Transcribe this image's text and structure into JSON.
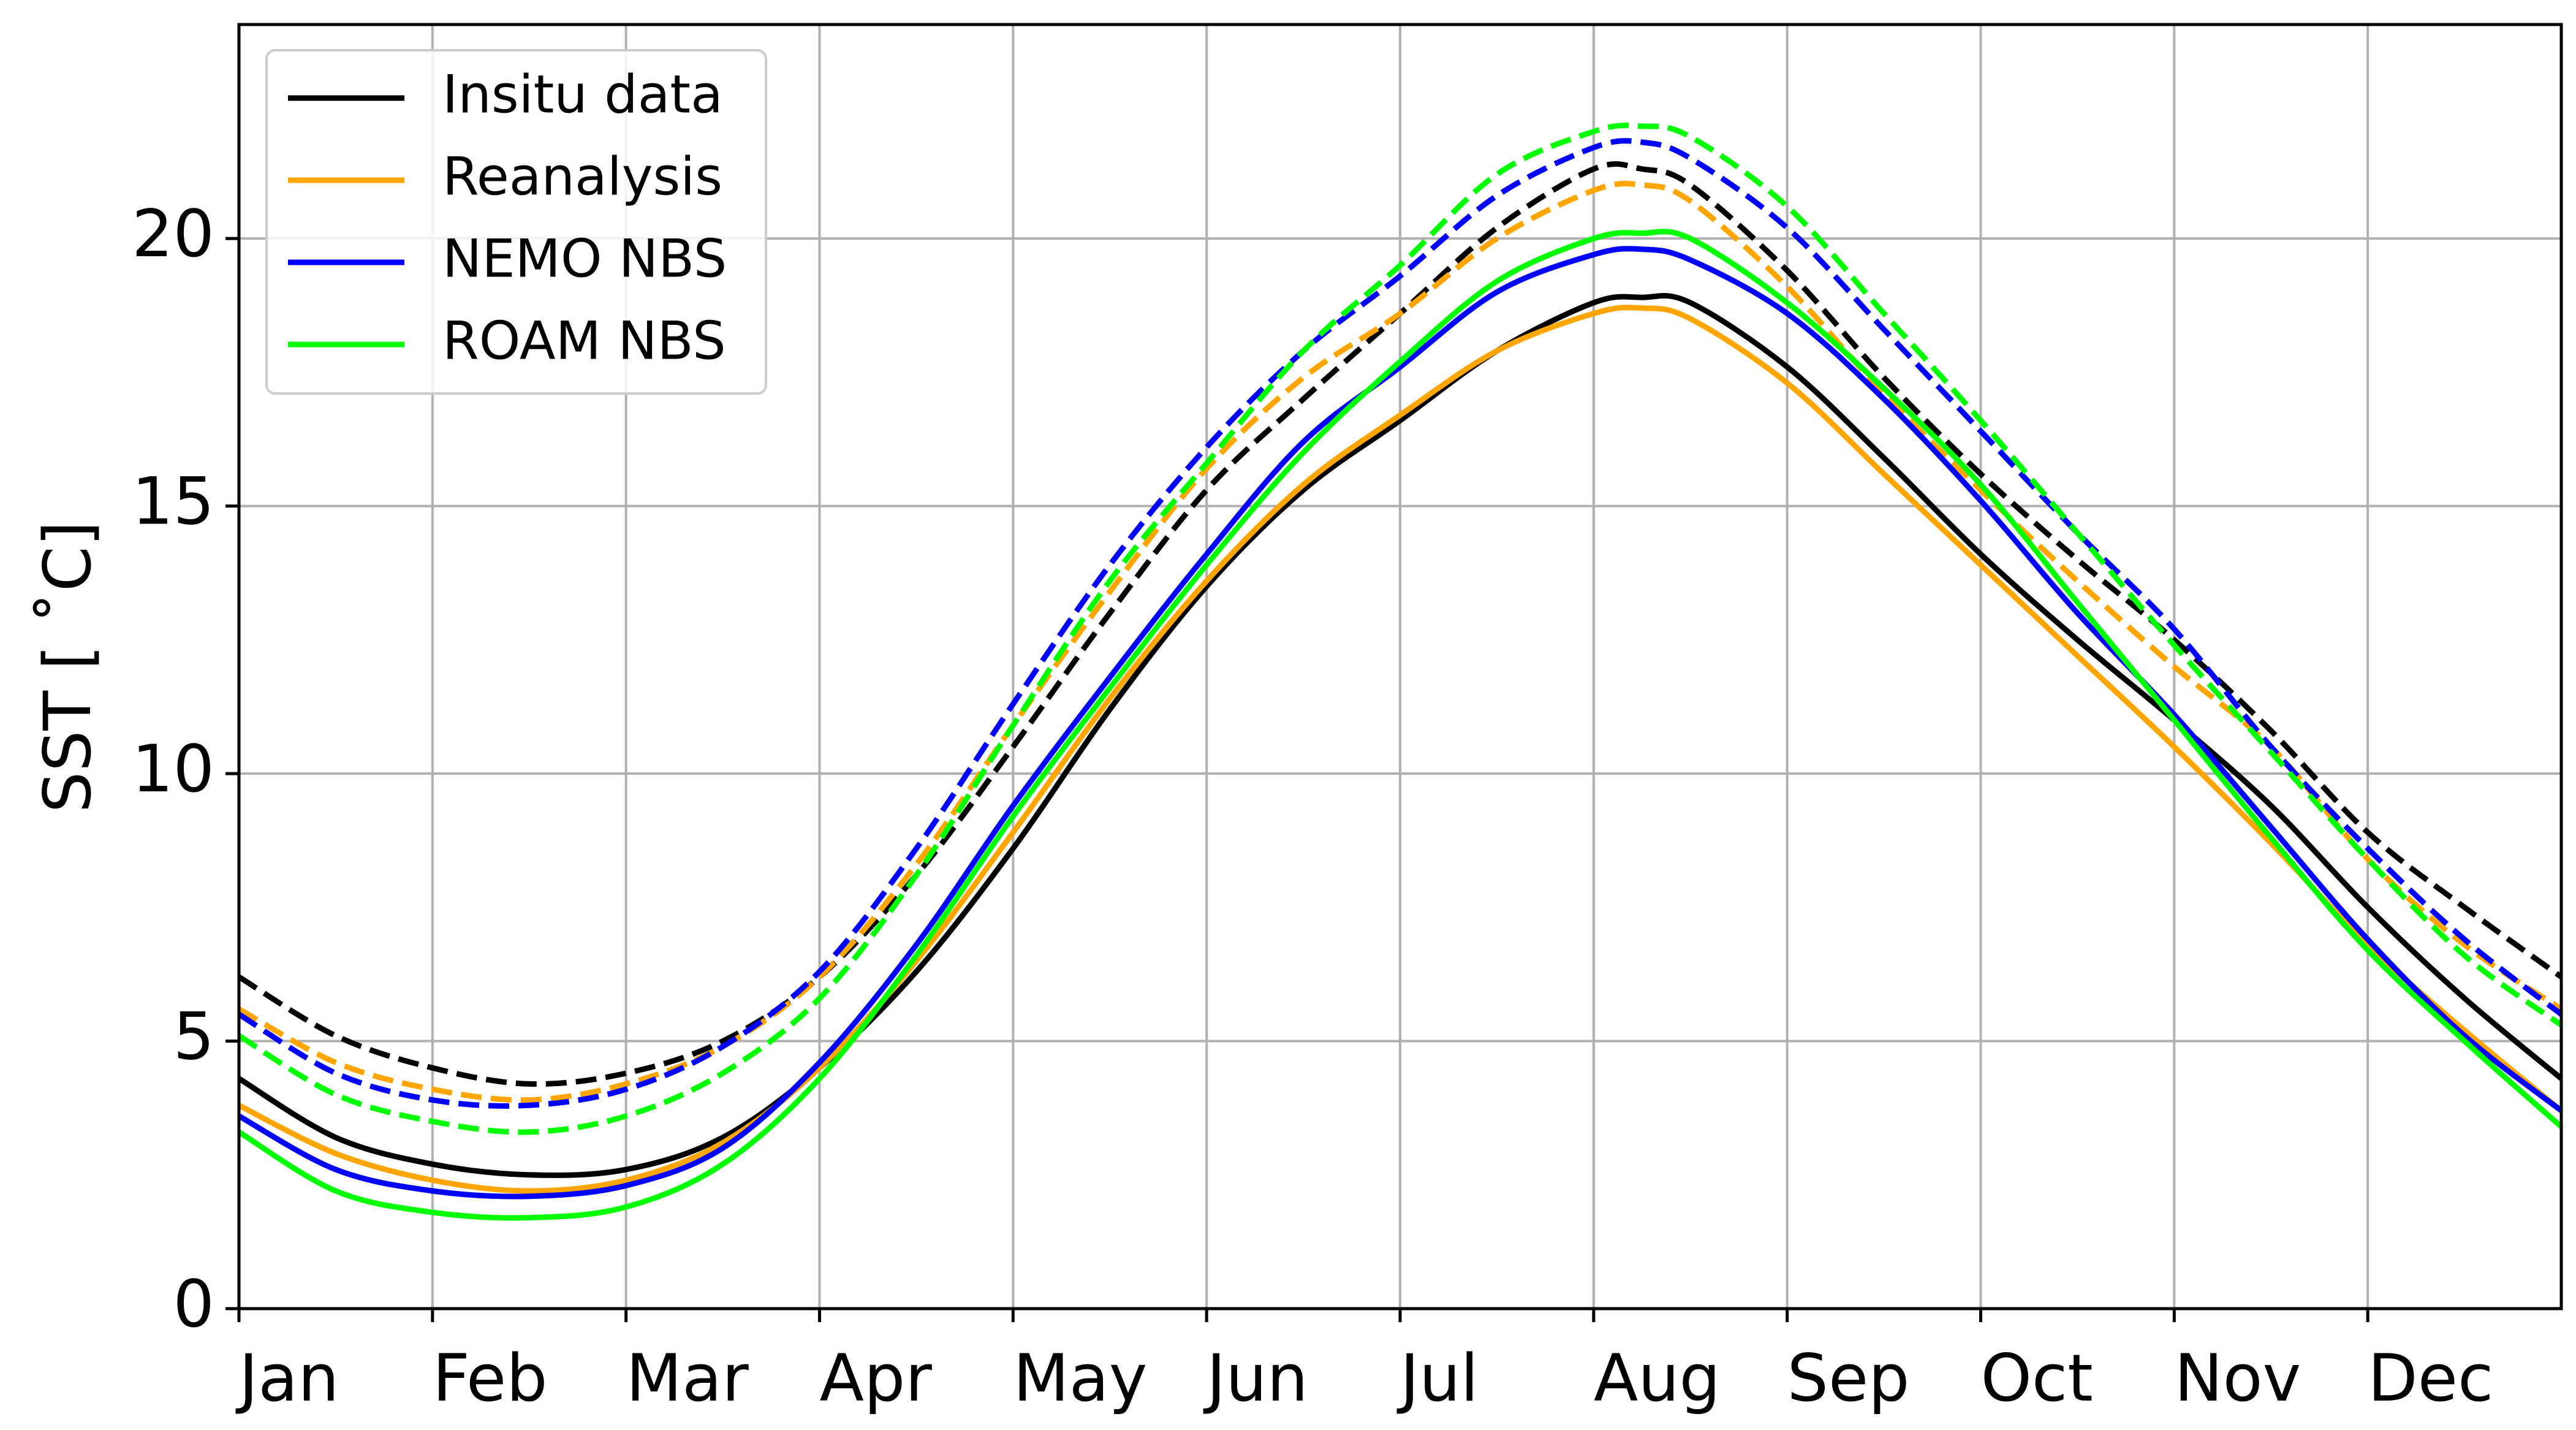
{
  "chart_data": {
    "type": "line",
    "xlabel": "",
    "ylabel": "SST [$^\\circ$C]",
    "ylabel_display": "SST [ ˚C]",
    "xlim": [
      0,
      12
    ],
    "ylim": [
      0,
      24
    ],
    "grid": true,
    "legend": {
      "placement": "top-left",
      "entries": [
        "Insitu data",
        "Reanalysis",
        "NEMO NBS",
        "ROAM NBS"
      ]
    },
    "x_ticks": [
      {
        "x": 0,
        "label": "Jan"
      },
      {
        "x": 1,
        "label": "Feb"
      },
      {
        "x": 2,
        "label": "Mar"
      },
      {
        "x": 3,
        "label": "Apr"
      },
      {
        "x": 4,
        "label": "May"
      },
      {
        "x": 5,
        "label": "Jun"
      },
      {
        "x": 6,
        "label": "Jul"
      },
      {
        "x": 7,
        "label": "Aug"
      },
      {
        "x": 8,
        "label": "Sep"
      },
      {
        "x": 9,
        "label": "Oct"
      },
      {
        "x": 10,
        "label": "Nov"
      },
      {
        "x": 11,
        "label": "Dec"
      }
    ],
    "y_ticks": [
      0,
      5,
      10,
      15,
      20
    ],
    "x": [
      0,
      0.5,
      1,
      1.5,
      2,
      2.5,
      3,
      3.5,
      4,
      4.5,
      5,
      5.5,
      6,
      6.5,
      7,
      7.25,
      7.5,
      8,
      8.5,
      9,
      9.5,
      10,
      10.5,
      11,
      11.5,
      12
    ],
    "series": [
      {
        "name": "Insitu data",
        "style": "solid",
        "color": "#000000",
        "values": [
          4.3,
          3.2,
          2.7,
          2.5,
          2.6,
          3.2,
          4.5,
          6.3,
          8.6,
          11.2,
          13.5,
          15.3,
          16.6,
          17.9,
          18.8,
          18.9,
          18.8,
          17.6,
          15.9,
          14.1,
          12.5,
          11.0,
          9.4,
          7.5,
          5.8,
          4.3
        ]
      },
      {
        "name": "",
        "style": "dashed",
        "color": "#000000",
        "values": [
          6.2,
          5.1,
          4.5,
          4.2,
          4.4,
          5.0,
          6.2,
          8.1,
          10.5,
          13.0,
          15.3,
          17.0,
          18.6,
          20.2,
          21.3,
          21.3,
          21.0,
          19.4,
          17.4,
          15.6,
          14.0,
          12.5,
          10.8,
          8.9,
          7.5,
          6.2
        ]
      },
      {
        "name": "Reanalysis",
        "style": "solid",
        "color": "#ffa500",
        "values": [
          3.8,
          2.9,
          2.4,
          2.2,
          2.4,
          3.1,
          4.5,
          6.5,
          8.9,
          11.4,
          13.6,
          15.4,
          16.7,
          17.9,
          18.6,
          18.7,
          18.5,
          17.3,
          15.6,
          13.9,
          12.2,
          10.5,
          8.7,
          6.8,
          5.2,
          3.7
        ]
      },
      {
        "name": "",
        "style": "dashed",
        "color": "#ffa500",
        "values": [
          5.6,
          4.6,
          4.1,
          3.9,
          4.2,
          4.9,
          6.2,
          8.3,
          10.9,
          13.4,
          15.7,
          17.4,
          18.6,
          20.0,
          20.9,
          21.0,
          20.7,
          19.1,
          17.1,
          15.3,
          13.6,
          12.0,
          10.5,
          8.4,
          6.8,
          5.6
        ]
      },
      {
        "name": "NEMO NBS",
        "style": "solid",
        "color": "#0000ff",
        "values": [
          3.6,
          2.6,
          2.2,
          2.1,
          2.3,
          3.0,
          4.6,
          6.8,
          9.4,
          11.8,
          14.1,
          16.2,
          17.6,
          19.0,
          19.7,
          19.8,
          19.6,
          18.6,
          17.0,
          15.1,
          13.0,
          11.1,
          9.0,
          6.9,
          5.1,
          3.7
        ]
      },
      {
        "name": "",
        "style": "dashed",
        "color": "#0000ff",
        "values": [
          5.5,
          4.4,
          3.9,
          3.8,
          4.1,
          4.9,
          6.3,
          8.6,
          11.3,
          13.9,
          16.1,
          17.9,
          19.3,
          20.8,
          21.7,
          21.8,
          21.5,
          20.2,
          18.3,
          16.4,
          14.5,
          12.7,
          10.5,
          8.6,
          6.9,
          5.5
        ]
      },
      {
        "name": "ROAM NBS",
        "style": "solid",
        "color": "#00ff00",
        "values": [
          3.3,
          2.2,
          1.8,
          1.7,
          1.9,
          2.7,
          4.3,
          6.6,
          9.2,
          11.6,
          13.9,
          16.0,
          17.7,
          19.2,
          20.0,
          20.1,
          20.0,
          18.8,
          17.2,
          15.4,
          13.2,
          11.0,
          8.8,
          6.7,
          5.0,
          3.4
        ]
      },
      {
        "name": "",
        "style": "dashed",
        "color": "#00ff00",
        "values": [
          5.1,
          4.0,
          3.5,
          3.3,
          3.6,
          4.4,
          5.8,
          8.1,
          10.9,
          13.6,
          15.8,
          17.9,
          19.5,
          21.2,
          22.0,
          22.1,
          21.9,
          20.6,
          18.6,
          16.6,
          14.5,
          12.4,
          10.4,
          8.4,
          6.6,
          5.3
        ]
      }
    ]
  }
}
